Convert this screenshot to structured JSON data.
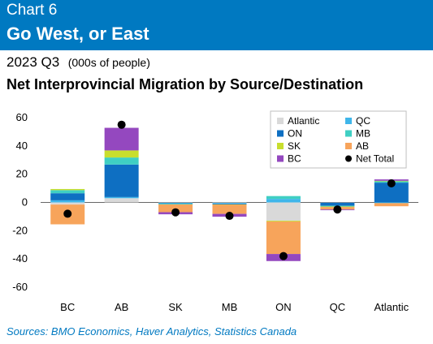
{
  "header": {
    "chart_number": "Chart 6",
    "title": "Go West, or East"
  },
  "subtitle": {
    "period": "2023 Q3",
    "units": "(000s of people)"
  },
  "main_title": "Net Interprovincial Migration by Source/Destination",
  "sources": "Sources: BMO Economics, Haver Analytics, Statistics Canada",
  "chart_data": {
    "type": "bar",
    "stacked": true,
    "title": "Net Interprovincial Migration by Source/Destination",
    "xlabel": "",
    "ylabel": "",
    "ylim": [
      -60,
      60
    ],
    "yticks": [
      60,
      40,
      20,
      0,
      -20,
      -40,
      -60
    ],
    "grid": false,
    "legend_position": "top-right",
    "categories": [
      "BC",
      "AB",
      "SK",
      "MB",
      "ON",
      "QC",
      "Atlantic"
    ],
    "series": [
      {
        "name": "Atlantic",
        "color": "#d9d9d9",
        "values": [
          -1.5,
          3.0,
          -0.3,
          -0.4,
          -13.0,
          -0.2,
          0
        ]
      },
      {
        "name": "QC",
        "color": "#3fb6ea",
        "values": [
          1.5,
          0.8,
          -0.3,
          -0.5,
          2.5,
          0,
          -0.5
        ]
      },
      {
        "name": "ON",
        "color": "#0e6fc2",
        "values": [
          5.0,
          23.0,
          -0.3,
          -0.5,
          0,
          -2.2,
          14.0
        ]
      },
      {
        "name": "MB",
        "color": "#3fcfc3",
        "values": [
          2.2,
          5.0,
          -0.5,
          0,
          2.0,
          -0.5,
          1.0
        ]
      },
      {
        "name": "SK",
        "color": "#c8de2e",
        "values": [
          0.8,
          5.0,
          0,
          -0.2,
          -0.5,
          -0.3,
          0.3
        ]
      },
      {
        "name": "AB",
        "color": "#f7a45b",
        "values": [
          -14.0,
          0,
          -5.5,
          -6.5,
          -23.0,
          -1.8,
          -2.2
        ]
      },
      {
        "name": "BC",
        "color": "#9448bf",
        "values": [
          0,
          16.0,
          -1.5,
          -2.0,
          -5.0,
          -0.5,
          1.0
        ]
      }
    ],
    "net_total": {
      "name": "Net Total",
      "color": "#000000",
      "values": [
        -8.0,
        55.0,
        -7.0,
        -9.5,
        -38.0,
        -5.0,
        13.5
      ]
    },
    "legend_order": [
      "Atlantic",
      "QC",
      "ON",
      "MB",
      "SK",
      "AB",
      "BC",
      "Net Total"
    ]
  }
}
